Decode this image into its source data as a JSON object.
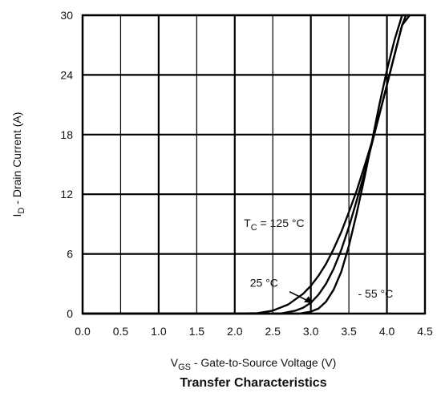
{
  "chart_data": {
    "type": "line",
    "title": "Transfer Characteristics",
    "xlabel": {
      "sym": "V",
      "sub": "GS",
      "text": " - Gate-to-Source Voltage (V)"
    },
    "ylabel": {
      "sym": "I",
      "sub": "D",
      "text": " - Drain Current (A)"
    },
    "xlim": [
      0.0,
      4.5
    ],
    "ylim": [
      0,
      30
    ],
    "xticks": [
      "0.0",
      "0.5",
      "1.0",
      "1.5",
      "2.0",
      "2.5",
      "3.0",
      "3.5",
      "4.0",
      "4.5"
    ],
    "yticks": [
      "0",
      "6",
      "12",
      "18",
      "24",
      "30"
    ],
    "grid": true,
    "series": [
      {
        "name": "125 °C",
        "x": [
          0.0,
          2.0,
          2.3,
          2.5,
          2.7,
          2.9,
          3.0,
          3.1,
          3.2,
          3.3,
          3.4,
          3.5,
          3.6,
          3.7,
          3.8,
          3.9,
          4.0,
          4.1,
          4.2,
          4.25
        ],
        "y": [
          0,
          0,
          0.05,
          0.3,
          0.9,
          2.0,
          2.8,
          3.8,
          5.0,
          6.5,
          8.2,
          10.2,
          12.3,
          14.7,
          17.2,
          20.0,
          23.0,
          26.0,
          29.0,
          30.0
        ]
      },
      {
        "name": "25 °C",
        "x": [
          0.0,
          2.6,
          2.8,
          2.9,
          3.0,
          3.1,
          3.2,
          3.3,
          3.4,
          3.5,
          3.6,
          3.7,
          3.8,
          3.9,
          4.0,
          4.1,
          4.2,
          4.3
        ],
        "y": [
          0,
          0,
          0.3,
          0.6,
          1.1,
          1.9,
          3.0,
          4.5,
          6.4,
          8.7,
          11.3,
          14.0,
          17.0,
          20.0,
          23.0,
          26.0,
          29.0,
          30.0
        ]
      },
      {
        "name": "- 55 °C",
        "x": [
          0.0,
          2.85,
          3.0,
          3.1,
          3.2,
          3.3,
          3.4,
          3.5,
          3.6,
          3.7,
          3.8,
          3.9,
          4.0,
          4.1,
          4.2,
          4.3
        ],
        "y": [
          0,
          0,
          0.2,
          0.5,
          1.2,
          2.4,
          4.2,
          6.8,
          10.0,
          13.5,
          17.2,
          21.0,
          24.5,
          27.5,
          30.0,
          30.0
        ]
      }
    ],
    "annotations": [
      {
        "kind": "tc",
        "sym": "T",
        "sub": "C",
        "text": " = 125 °C"
      },
      {
        "kind": "plain",
        "text": "25 °C"
      },
      {
        "kind": "plain",
        "text": "- 55 °C"
      }
    ]
  }
}
